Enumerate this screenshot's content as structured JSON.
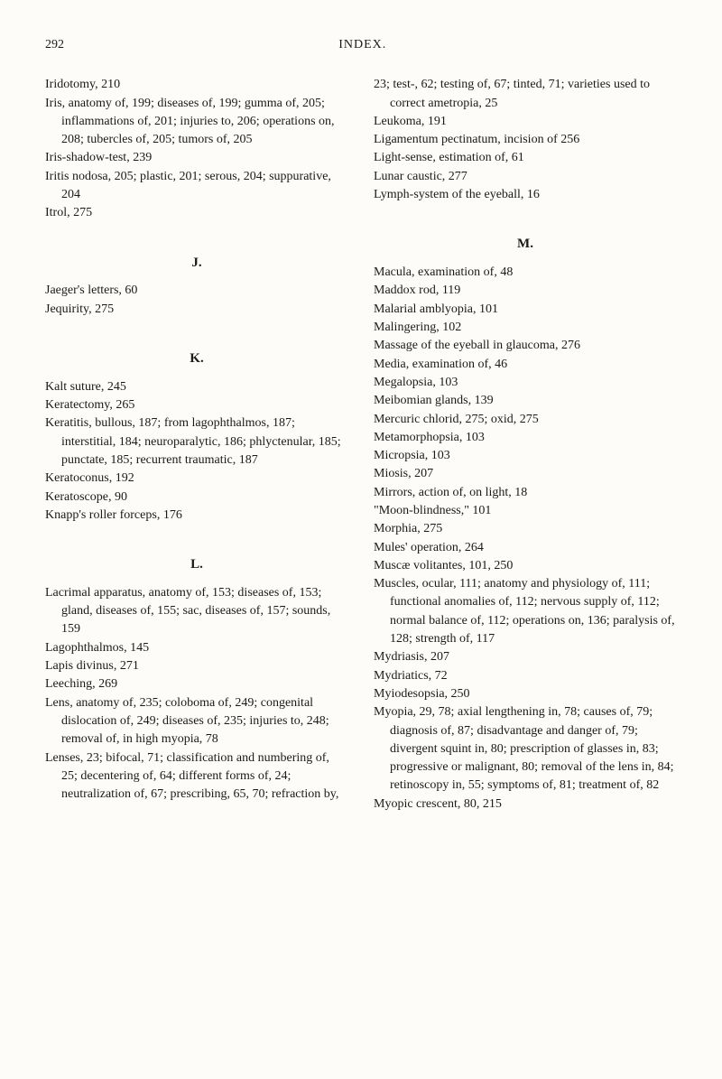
{
  "header": {
    "pageNumber": "292",
    "title": "INDEX."
  },
  "leftColumn": {
    "block1": [
      "Iridotomy, 210",
      "Iris, anatomy of, 199; diseases of, 199; gumma of, 205; inflammations of, 201; injuries to, 206; operations on, 208; tubercles of, 205; tumors of, 205",
      "Iris-shadow-test, 239",
      "Iritis nodosa, 205; plastic, 201; serous, 204; suppurative, 204",
      "Itrol, 275"
    ],
    "letterJ": "J.",
    "block2": [
      "Jaeger's letters, 60",
      "Jequirity, 275"
    ],
    "letterK": "K.",
    "block3": [
      "Kalt suture, 245",
      "Keratectomy, 265",
      "Keratitis, bullous, 187; from lagophthalmos, 187; interstitial, 184; neuroparalytic, 186; phlyctenular, 185; punctate, 185; recurrent traumatic, 187",
      "Keratoconus, 192",
      "Keratoscope, 90",
      "Knapp's roller forceps, 176"
    ],
    "letterL": "L.",
    "block4": [
      "Lacrimal apparatus, anatomy of, 153; diseases of, 153; gland, diseases of, 155; sac, diseases of, 157; sounds, 159",
      "Lagophthalmos, 145",
      "Lapis divinus, 271",
      "Leeching, 269",
      "Lens, anatomy of, 235; coloboma of, 249; congenital dislocation of, 249; diseases of, 235; injuries to, 248; removal of, in high myopia, 78",
      "Lenses, 23; bifocal, 71; classification and numbering of, 25; decentering of, 64; different forms of, 24; neutralization of, 67; prescribing, 65, 70; refraction by,"
    ]
  },
  "rightColumn": {
    "block1": [
      "23; test-, 62; testing of, 67; tinted, 71; varieties used to correct ametropia, 25",
      "Leukoma, 191",
      "Ligamentum pectinatum, incision of 256",
      "Light-sense, estimation of, 61",
      "Lunar caustic, 277",
      "Lymph-system of the eyeball, 16"
    ],
    "letterM": "M.",
    "block2": [
      "Macula, examination of, 48",
      "Maddox rod, 119",
      "Malarial amblyopia, 101",
      "Malingering, 102",
      "Massage of the eyeball in glaucoma, 276",
      "Media, examination of, 46",
      "Megalopsia, 103",
      "Meibomian glands, 139",
      "Mercuric chlorid, 275; oxid, 275",
      "Metamorphopsia, 103",
      "Micropsia, 103",
      "Miosis, 207",
      "Mirrors, action of, on light, 18",
      "\"Moon-blindness,\" 101",
      "Morphia, 275",
      "Mules' operation, 264",
      "Muscæ volitantes, 101, 250",
      "Muscles, ocular, 111; anatomy and physiology of, 111; functional anomalies of, 112; nervous supply of, 112; normal balance of, 112; operations on, 136; paralysis of, 128; strength of, 117",
      "Mydriasis, 207",
      "Mydriatics, 72",
      "Myiodesopsia, 250",
      "Myopia, 29, 78; axial lengthening in, 78; causes of, 79; diagnosis of, 87; disadvantage and danger of, 79; divergent squint in, 80; prescription of glasses in, 83; progressive or malignant, 80; removal of the lens in, 84; retinoscopy in, 55; symptoms of, 81; treatment of, 82",
      "Myopic crescent, 80, 215"
    ]
  }
}
